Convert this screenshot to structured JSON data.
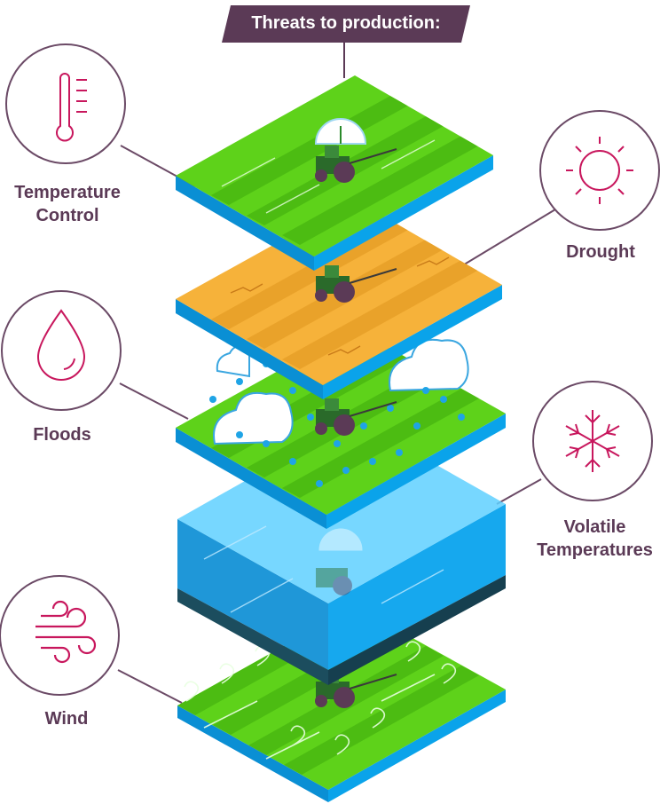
{
  "banner": {
    "title": "Threats to production:"
  },
  "threats": [
    {
      "id": "temperature-control",
      "line1": "Temperature",
      "line2": "Control",
      "icon": "thermometer-icon"
    },
    {
      "id": "drought",
      "line1": "Drought",
      "line2": "",
      "icon": "sun-icon"
    },
    {
      "id": "floods",
      "line1": "Floods",
      "line2": "",
      "icon": "water-drop-icon"
    },
    {
      "id": "volatile-temperatures",
      "line1": "Volatile",
      "line2": "Temperatures",
      "icon": "snowflake-icon"
    },
    {
      "id": "wind",
      "line1": "Wind",
      "line2": "",
      "icon": "wind-icon"
    }
  ],
  "colors": {
    "banner": "#5b3a56",
    "label": "#5b3a56",
    "icon": "#c8175d",
    "circle": "#6b4a66",
    "grass": "#5ed21a",
    "grass_stripe": "#4cbc12",
    "dry": "#f6b23a",
    "dry_stripe": "#e9a22a",
    "side": "#0aa3ea",
    "water": "#2fb4f0",
    "water_dark": "#1c4d5e"
  }
}
